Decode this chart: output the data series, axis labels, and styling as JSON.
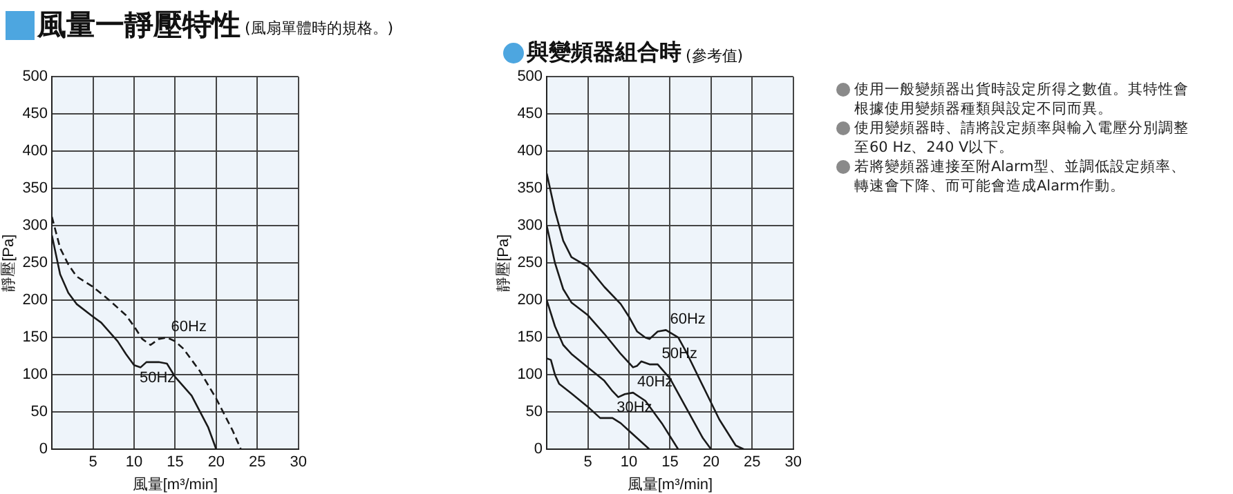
{
  "chart_data": [
    {
      "type": "line",
      "title": "風量一靜壓特性",
      "subtitle": "(風扇單體時的規格。)",
      "xlabel": "風量[m³/min]",
      "ylabel": "靜壓[Pa]",
      "xlim": [
        0,
        30
      ],
      "xticks": [
        5,
        10,
        15,
        20,
        25,
        30
      ],
      "ylim": [
        0,
        500
      ],
      "yticks": [
        0,
        50,
        100,
        150,
        200,
        250,
        300,
        350,
        400,
        450,
        500
      ],
      "grid": true,
      "series": [
        {
          "name": "50Hz",
          "color": "#1a1a1a",
          "line_style": "solid",
          "x": [
            0,
            1,
            2,
            3,
            5,
            6,
            8,
            9,
            10,
            10.8,
            11.5,
            13,
            14,
            15,
            17,
            19,
            20
          ],
          "values": [
            287,
            235,
            210,
            195,
            178,
            170,
            145,
            128,
            113,
            110,
            117,
            117,
            115,
            97,
            72,
            30,
            0
          ]
        },
        {
          "name": "60Hz",
          "color": "#1a1a1a",
          "line_style": "dashed",
          "x": [
            0,
            1,
            2,
            3,
            5,
            7,
            9,
            10,
            11,
            12,
            13,
            14,
            15,
            16,
            18,
            20,
            22,
            23
          ],
          "values": [
            312,
            270,
            248,
            232,
            218,
            200,
            180,
            165,
            148,
            140,
            148,
            150,
            145,
            135,
            105,
            68,
            25,
            0
          ]
        }
      ]
    },
    {
      "type": "line",
      "title": "與變頻器組合時",
      "subtitle": "(參考值)",
      "xlabel": "風量[m³/min]",
      "ylabel": "靜壓[Pa]",
      "xlim": [
        0,
        30
      ],
      "xticks": [
        5,
        10,
        15,
        20,
        25,
        30
      ],
      "ylim": [
        0,
        500
      ],
      "yticks": [
        0,
        50,
        100,
        150,
        200,
        250,
        300,
        350,
        400,
        450,
        500
      ],
      "grid": true,
      "series": [
        {
          "name": "60Hz",
          "color": "#1a1a1a",
          "x": [
            0,
            1,
            2,
            3,
            5,
            7,
            9,
            10,
            11,
            12,
            12.5,
            13.5,
            14.5,
            16,
            17,
            19,
            21,
            23,
            24
          ],
          "values": [
            370,
            320,
            280,
            258,
            245,
            218,
            195,
            178,
            158,
            150,
            148,
            158,
            160,
            150,
            130,
            85,
            40,
            5,
            0
          ]
        },
        {
          "name": "50Hz",
          "color": "#1a1a1a",
          "x": [
            0,
            1,
            2,
            3,
            5,
            7,
            9,
            10.5,
            11,
            11.5,
            12.5,
            13.5,
            15,
            17,
            19,
            20
          ],
          "values": [
            300,
            250,
            215,
            197,
            180,
            155,
            128,
            110,
            112,
            118,
            114,
            114,
            95,
            55,
            15,
            0
          ]
        },
        {
          "name": "40Hz",
          "color": "#1a1a1a",
          "x": [
            0,
            1,
            2,
            3,
            5,
            7,
            8,
            8.7,
            9.5,
            10.5,
            12,
            14,
            16
          ],
          "values": [
            200,
            165,
            140,
            128,
            110,
            92,
            78,
            70,
            74,
            76,
            65,
            35,
            0
          ]
        },
        {
          "name": "30Hz",
          "color": "#1a1a1a",
          "x": [
            0,
            0.5,
            1,
            1.5,
            3,
            5,
            6.5,
            8,
            9,
            10,
            11,
            12.5
          ],
          "values": [
            122,
            120,
            100,
            88,
            75,
            57,
            42,
            42,
            35,
            25,
            15,
            0
          ]
        }
      ],
      "annotations": [
        "使用一般變頻器出貨時設定所得之數值。其特性會根據使用變頻器種類與設定不同而異。",
        "使用變頻器時、請將設定頻率與輸入電壓分別調整至60 Hz、240 V以下。",
        "若將變頻器連接至附Alarm型、並調低設定頻率、轉速會下降、而可能會造成Alarm作動。"
      ]
    }
  ]
}
